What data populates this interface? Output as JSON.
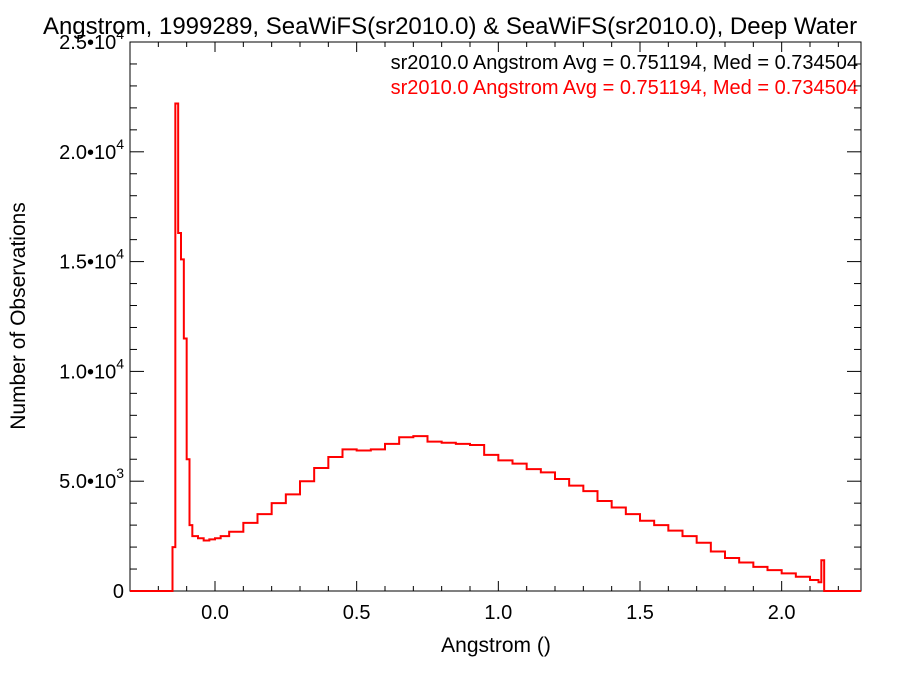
{
  "chart_data": {
    "type": "line",
    "title": "Angstrom, 1999289, SeaWiFS(sr2010.0) & SeaWiFS(sr2010.0), Deep Water",
    "xlabel": "Angstrom ()",
    "ylabel": "Number of Observations",
    "xlim": [
      -0.3,
      2.28
    ],
    "ylim": [
      0,
      25000
    ],
    "x_ticks": [
      {
        "value": 0.0,
        "label": "0.0"
      },
      {
        "value": 0.5,
        "label": "0.5"
      },
      {
        "value": 1.0,
        "label": "1.0"
      },
      {
        "value": 1.5,
        "label": "1.5"
      },
      {
        "value": 2.0,
        "label": "2.0"
      }
    ],
    "y_ticks": [
      {
        "value": 0,
        "mantissa": "0",
        "exp": ""
      },
      {
        "value": 5000,
        "mantissa": "5.0•10",
        "exp": "3"
      },
      {
        "value": 10000,
        "mantissa": "1.0•10",
        "exp": "4"
      },
      {
        "value": 15000,
        "mantissa": "1.5•10",
        "exp": "4"
      },
      {
        "value": 20000,
        "mantissa": "2.0•10",
        "exp": "4"
      },
      {
        "value": 25000,
        "mantissa": "2.5•10",
        "exp": "4"
      }
    ],
    "legend": [
      {
        "text": "sr2010.0 Angstrom Avg = 0.751194, Med = 0.734504",
        "color": "#000000"
      },
      {
        "text": "sr2010.0 Angstrom Avg = 0.751194, Med = 0.734504",
        "color": "#ff0000"
      }
    ],
    "legend_placement": "top-right",
    "series": [
      {
        "color": "#ff0000",
        "step": true,
        "points": [
          [
            -0.3,
            0
          ],
          [
            -0.16,
            0
          ],
          [
            -0.15,
            2000
          ],
          [
            -0.14,
            22200
          ],
          [
            -0.13,
            16300
          ],
          [
            -0.12,
            15100
          ],
          [
            -0.11,
            11500
          ],
          [
            -0.1,
            6000
          ],
          [
            -0.09,
            3000
          ],
          [
            -0.08,
            2500
          ],
          [
            -0.06,
            2400
          ],
          [
            -0.04,
            2300
          ],
          [
            -0.02,
            2350
          ],
          [
            0.0,
            2400
          ],
          [
            0.02,
            2500
          ],
          [
            0.05,
            2700
          ],
          [
            0.1,
            3100
          ],
          [
            0.15,
            3500
          ],
          [
            0.2,
            4000
          ],
          [
            0.25,
            4400
          ],
          [
            0.3,
            5000
          ],
          [
            0.35,
            5600
          ],
          [
            0.4,
            6100
          ],
          [
            0.45,
            6450
          ],
          [
            0.5,
            6400
          ],
          [
            0.55,
            6450
          ],
          [
            0.6,
            6700
          ],
          [
            0.65,
            7000
          ],
          [
            0.7,
            7050
          ],
          [
            0.75,
            6800
          ],
          [
            0.8,
            6750
          ],
          [
            0.85,
            6700
          ],
          [
            0.9,
            6650
          ],
          [
            0.95,
            6200
          ],
          [
            1.0,
            5950
          ],
          [
            1.05,
            5800
          ],
          [
            1.1,
            5550
          ],
          [
            1.15,
            5400
          ],
          [
            1.2,
            5100
          ],
          [
            1.25,
            4800
          ],
          [
            1.3,
            4550
          ],
          [
            1.35,
            4100
          ],
          [
            1.4,
            3800
          ],
          [
            1.45,
            3500
          ],
          [
            1.5,
            3200
          ],
          [
            1.55,
            3000
          ],
          [
            1.6,
            2750
          ],
          [
            1.65,
            2500
          ],
          [
            1.7,
            2200
          ],
          [
            1.75,
            1800
          ],
          [
            1.8,
            1500
          ],
          [
            1.85,
            1300
          ],
          [
            1.9,
            1100
          ],
          [
            1.95,
            950
          ],
          [
            2.0,
            800
          ],
          [
            2.05,
            650
          ],
          [
            2.1,
            500
          ],
          [
            2.13,
            400
          ],
          [
            2.14,
            1400
          ],
          [
            2.15,
            0
          ],
          [
            2.28,
            0
          ]
        ]
      }
    ]
  }
}
